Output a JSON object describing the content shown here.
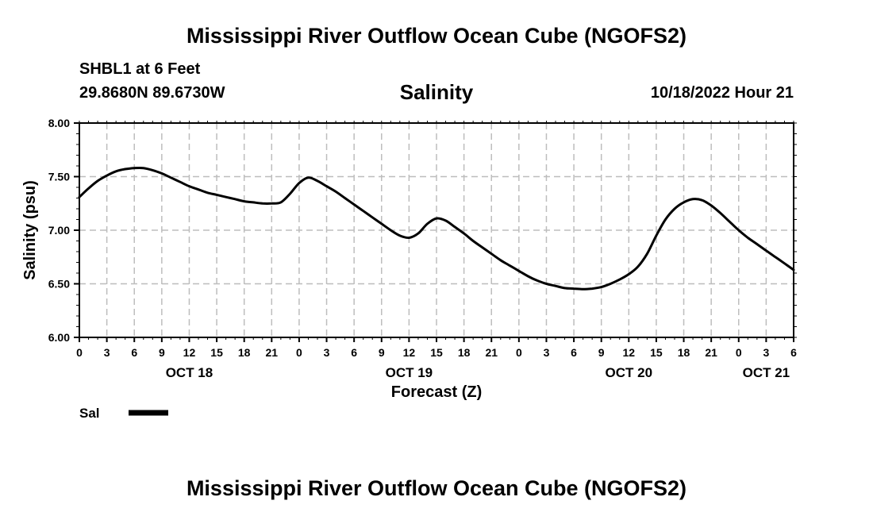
{
  "header": {
    "title": "Mississippi River Outflow Ocean Cube (NGOFS2)",
    "station": "SHBL1 at 6 Feet",
    "coords": "29.8680N  89.6730W",
    "variable": "Salinity",
    "datetime": "10/18/2022 Hour 21"
  },
  "footer": {
    "title": "Mississippi River Outflow Ocean Cube (NGOFS2)"
  },
  "chart_data": {
    "type": "line",
    "title": "Salinity",
    "xlabel": "Forecast (Z)",
    "ylabel": "Salinity (psu)",
    "ylim": [
      6.0,
      8.0
    ],
    "xlim": [
      0,
      78
    ],
    "yticks": [
      "6.00",
      "6.50",
      "7.00",
      "7.50",
      "8.00"
    ],
    "yvalues": [
      6.0,
      6.5,
      7.0,
      7.5,
      8.0
    ],
    "xtick_labels": [
      "0",
      "3",
      "6",
      "9",
      "12",
      "15",
      "18",
      "21",
      "0",
      "3",
      "6",
      "9",
      "12",
      "15",
      "18",
      "21",
      "0",
      "3",
      "6",
      "9",
      "12",
      "15",
      "18",
      "21",
      "0",
      "3",
      "6"
    ],
    "day_labels": [
      {
        "label": "OCT 18",
        "hour": 12
      },
      {
        "label": "OCT 19",
        "hour": 36
      },
      {
        "label": "OCT 20",
        "hour": 60
      },
      {
        "label": "OCT 21",
        "hour": 75
      }
    ],
    "grid": true,
    "legend_position": "bottom-left",
    "line_color": "#000000",
    "series": [
      {
        "name": "Sal",
        "x": [
          0,
          1,
          2,
          3,
          4,
          5,
          6,
          7,
          8,
          9,
          10,
          11,
          12,
          13,
          14,
          15,
          16,
          17,
          18,
          19,
          20,
          21,
          22,
          23,
          24,
          25,
          26,
          27,
          28,
          29,
          30,
          31,
          32,
          33,
          34,
          35,
          36,
          37,
          38,
          39,
          40,
          41,
          42,
          43,
          44,
          45,
          46,
          47,
          48,
          49,
          50,
          51,
          52,
          53,
          54,
          55,
          56,
          57,
          58,
          59,
          60,
          61,
          62,
          63,
          64,
          65,
          66,
          67,
          68,
          69,
          70,
          71,
          72,
          73,
          74,
          75,
          76,
          77,
          78
        ],
        "values": [
          7.31,
          7.39,
          7.46,
          7.51,
          7.55,
          7.57,
          7.58,
          7.58,
          7.56,
          7.53,
          7.49,
          7.45,
          7.41,
          7.38,
          7.35,
          7.33,
          7.31,
          7.29,
          7.27,
          7.26,
          7.25,
          7.25,
          7.26,
          7.34,
          7.44,
          7.49,
          7.46,
          7.41,
          7.36,
          7.3,
          7.24,
          7.18,
          7.12,
          7.06,
          7.0,
          6.95,
          6.93,
          6.97,
          7.06,
          7.11,
          7.09,
          7.03,
          6.97,
          6.9,
          6.84,
          6.78,
          6.72,
          6.67,
          6.62,
          6.57,
          6.53,
          6.5,
          6.48,
          6.46,
          6.455,
          6.45,
          6.455,
          6.47,
          6.5,
          6.54,
          6.59,
          6.66,
          6.78,
          6.95,
          7.1,
          7.2,
          7.26,
          7.29,
          7.28,
          7.23,
          7.16,
          7.08,
          7.0,
          6.93,
          6.87,
          6.81,
          6.75,
          6.69,
          6.63
        ]
      }
    ]
  },
  "legend": {
    "label": "Sal"
  }
}
